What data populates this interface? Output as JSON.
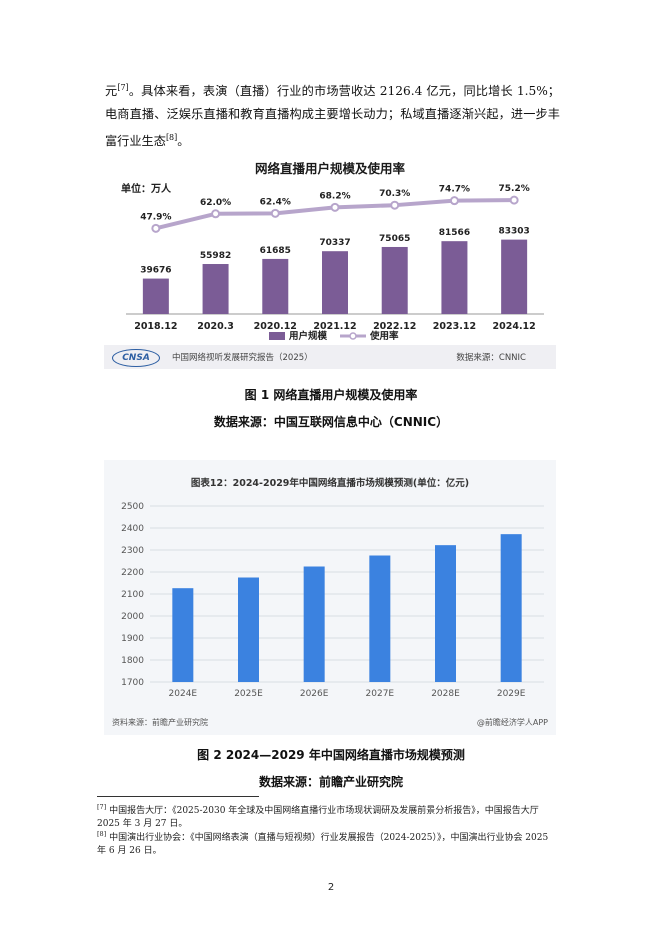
{
  "paragraph": {
    "lead": "元",
    "ref1": "[7]",
    "body": "。具体来看，表演（直播）行业的市场营收达 2126.4 亿元，同比增长 1.5%；电商直播、泛娱乐直播和教育直播构成主要增长动力；私域直播逐渐兴起，进一步丰富行业生态",
    "ref2": "[8]",
    "end": "。"
  },
  "figure1": {
    "header": "网络直播用户规模及使用率",
    "unit_label": "单位：万人",
    "legend_bar": "用户规模",
    "legend_line": "使用率",
    "footer_logo": "CNSA",
    "footer_publisher": "中国网络视听发展研究报告（2025）",
    "footer_source": "数据来源：CNNIC",
    "caption": "图 1 网络直播用户规模及使用率",
    "source_caption": "数据来源：中国互联网信息中心（CNNIC）"
  },
  "figure2": {
    "caption": "图 2 2024—2029 年中国网络直播市场规模预测",
    "source_caption": "数据来源：前瞻产业研究院",
    "source_left": "资料来源：前瞻产业研究院",
    "source_right": "@前瞻经济学人APP"
  },
  "chart_data": [
    {
      "type": "bar",
      "title": "网络直播用户规模及使用率",
      "ylabel": "单位：万人",
      "categories": [
        "2018.12",
        "2020.3",
        "2020.12",
        "2021.12",
        "2022.12",
        "2023.12",
        "2024.12"
      ],
      "series": [
        {
          "name": "用户规模",
          "type": "bar",
          "values": [
            39676,
            55982,
            61685,
            70337,
            75065,
            81566,
            83303
          ],
          "labels": [
            "39676",
            "55982",
            "61685",
            "70337",
            "75065",
            "81566",
            "83303"
          ]
        },
        {
          "name": "使用率",
          "type": "line",
          "values": [
            47.9,
            62.0,
            62.4,
            68.2,
            70.3,
            74.7,
            75.2
          ],
          "labels": [
            "47.9%",
            "62.0%",
            "62.4%",
            "68.2%",
            "70.3%",
            "74.7%",
            "75.2%"
          ]
        }
      ],
      "bar_ylim": [
        0,
        140000
      ],
      "line_ylim": [
        25,
        85
      ],
      "colors": {
        "bar": "#7b5c96",
        "line": "#b7a5cb",
        "accent": "#2e5fa3"
      },
      "legend": "bottom",
      "grid": false
    },
    {
      "type": "bar",
      "title": "图表12：2024-2029年中国网络直播市场规模预测(单位：亿元)",
      "categories": [
        "2024E",
        "2025E",
        "2026E",
        "2027E",
        "2028E",
        "2029E"
      ],
      "values": [
        2126.4,
        2175,
        2225,
        2275,
        2322,
        2372
      ],
      "ylim": [
        1700,
        2500
      ],
      "yticks": [
        "1700",
        "1800",
        "1900",
        "2000",
        "2100",
        "2200",
        "2300",
        "2400",
        "2500"
      ],
      "colors": {
        "bar": "#3b82e0",
        "grid": "#d9dde3"
      },
      "grid": true
    }
  ],
  "footnotes": [
    {
      "ref": "[7]",
      "text": "中国报告大厅：《2025-2030 年全球及中国网络直播行业市场现状调研及发展前景分析报告》，中国报告大厅 2025 年 3 月 27 日。"
    },
    {
      "ref": "[8]",
      "text": "中国演出行业协会：《中国网络表演（直播与短视频）行业发展报告（2024-2025）》，中国演出行业协会 2025 年 6 月 26 日。"
    }
  ],
  "page_number": "2"
}
